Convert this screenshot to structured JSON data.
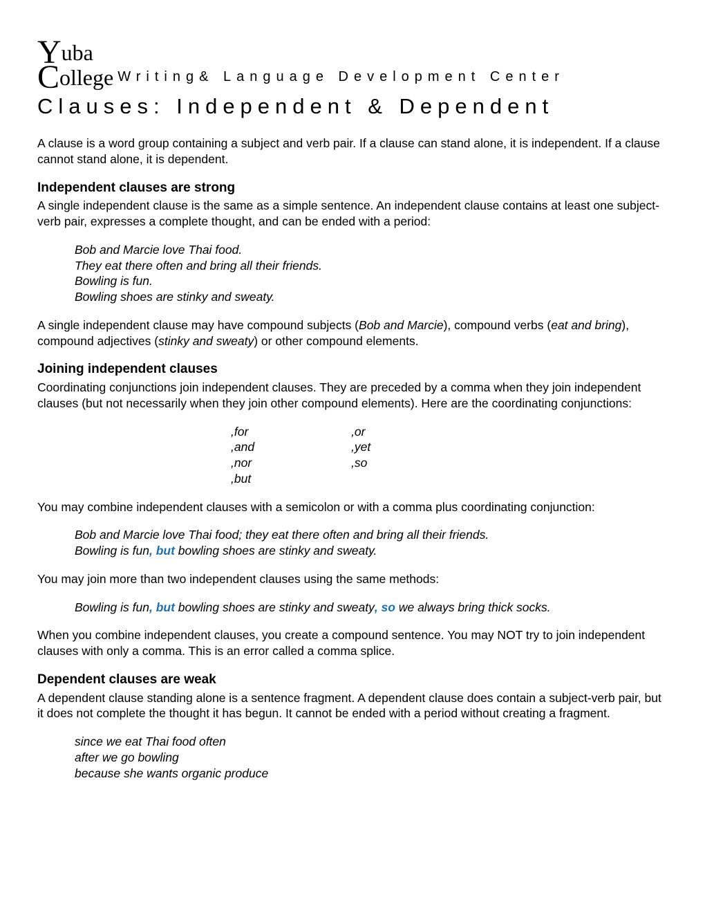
{
  "header": {
    "logo_line1": "uba",
    "logo_line2": "ollege",
    "center_name": "Writing& Language Development Center"
  },
  "title": "Clauses: Independent & Dependent",
  "intro": "A clause is a word group containing a subject and verb pair. If a clause can stand alone, it is independent. If a clause cannot stand alone, it is dependent.",
  "sec1": {
    "heading": "Independent clauses are strong",
    "p1": "A single independent clause is the same as a simple sentence. An independent clause contains at least one subject-verb pair, expresses a complete thought, and can be ended with a period:",
    "examples": [
      "Bob and Marcie love Thai food.",
      "They eat there often and bring all their friends.",
      "Bowling is fun.",
      "Bowling shoes are stinky and sweaty."
    ],
    "p2_pre": "A single independent clause may have compound subjects (",
    "p2_i1": "Bob and Marcie",
    "p2_mid1": "), compound verbs (",
    "p2_i2": "eat and bring",
    "p2_mid2": "), compound adjectives (",
    "p2_i3": "stinky and sweaty",
    "p2_post": ") or other compound elements."
  },
  "sec2": {
    "heading": "Joining independent clauses",
    "p1": "Coordinating conjunctions join independent clauses. They are preceded by a comma when they join independent clauses (but not necessarily when they join other compound elements). Here are the coordinating conjunctions:",
    "conj_col1": [
      ",for",
      ",and",
      ",nor",
      ",but"
    ],
    "conj_col2": [
      ",or",
      ",yet",
      ",so"
    ],
    "p2": "You may combine independent clauses with a semicolon or with a comma plus coordinating conjunction:",
    "ex2_line1": "Bob and Marcie love Thai food; they eat there often and bring all their friends.",
    "ex2_line2a": "Bowling is fun",
    "ex2_line2b": ", but",
    "ex2_line2c": " bowling shoes are stinky and sweaty.",
    "p3": "You may join more than two independent clauses using the same methods:",
    "ex3_a": "Bowling is fun",
    "ex3_b": ", but",
    "ex3_c": " bowling shoes are stinky and sweaty",
    "ex3_d": ", so",
    "ex3_e": " we always bring thick socks.",
    "p4": "When you combine independent clauses, you create a compound sentence. You may NOT try to join independent clauses with only a comma. This is an error called a comma splice."
  },
  "sec3": {
    "heading": "Dependent clauses are weak",
    "p1": "A dependent clause standing alone is a sentence fragment. A dependent clause does contain a subject-verb pair, but it does not complete the thought it has begun. It cannot be ended with a period without creating a fragment.",
    "examples": [
      "since we eat Thai food often",
      "after we go bowling",
      "because she wants organic produce"
    ]
  },
  "colors": {
    "keyword": "#1f6fae",
    "text": "#000000",
    "background": "#ffffff"
  }
}
